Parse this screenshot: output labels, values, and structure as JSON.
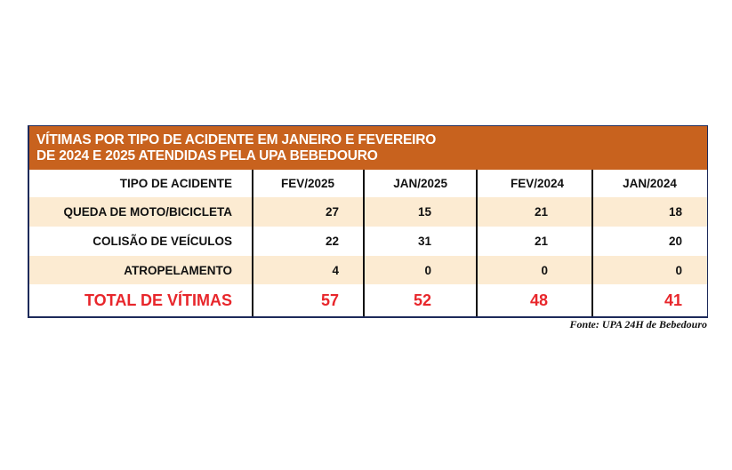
{
  "chart_data": {
    "type": "table",
    "title": "VÍTIMAS POR TIPO DE ACIDENTE EM JANEIRO E FEVEREIRO DE 2024 E 2025 ATENDIDAS PELA UPA BEBEDOURO",
    "title_lines": [
      "VÍTIMAS POR TIPO DE ACIDENTE EM JANEIRO E FEVEREIRO",
      "DE 2024 E 2025 ATENDIDAS PELA UPA BEBEDOURO"
    ],
    "columns": [
      "TIPO DE ACIDENTE",
      "FEV/2025",
      "JAN/2025",
      "FEV/2024",
      "JAN/2024"
    ],
    "rows": [
      [
        "QUEDA DE MOTO/BICICLETA",
        "27",
        "15",
        "21",
        "18"
      ],
      [
        "COLISÃO DE VEÍCULOS",
        "22",
        "31",
        "21",
        "20"
      ],
      [
        "ATROPELAMENTO",
        "4",
        "0",
        "0",
        "0"
      ]
    ],
    "total": [
      "TOTAL DE VÍTIMAS",
      "57",
      "52",
      "48",
      "41"
    ],
    "source": "Fonte: UPA 24H de Bebedouro"
  },
  "colors": {
    "header_bg": "#c8621e",
    "stripe": "#fcebd2",
    "total_text": "#e8262b",
    "border": "#1d2a5a"
  }
}
